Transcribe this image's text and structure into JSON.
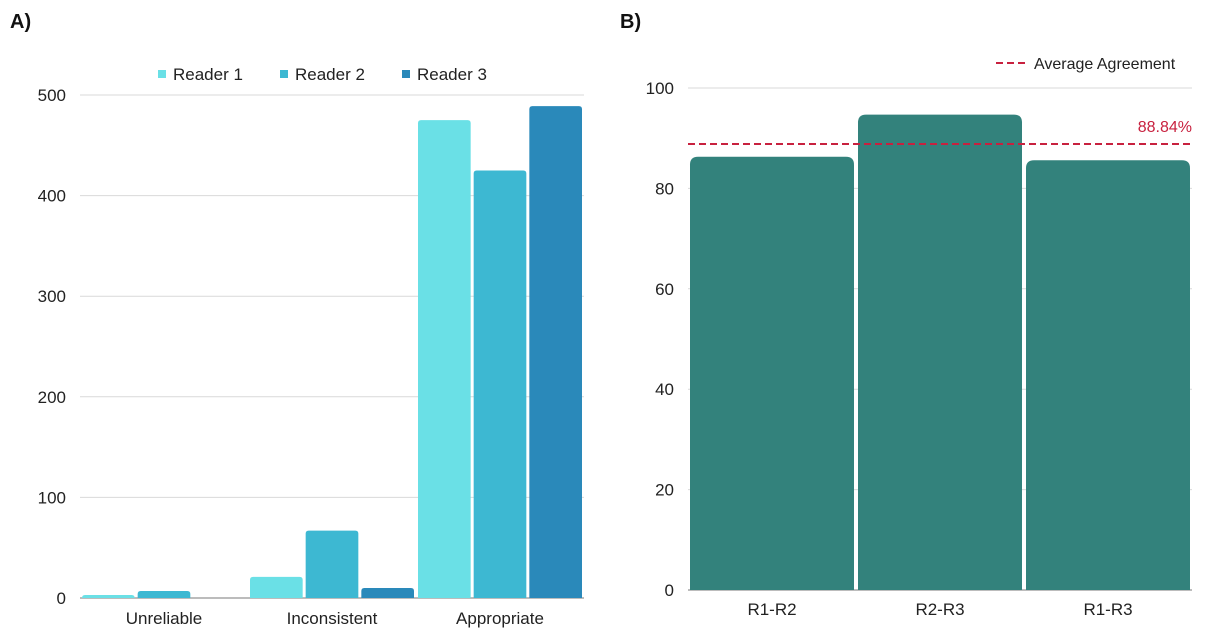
{
  "panels": {
    "a": {
      "label": "A)"
    },
    "b": {
      "label": "B)"
    }
  },
  "chart_data": [
    {
      "type": "bar",
      "title": "",
      "xlabel": "",
      "ylabel": "",
      "categories": [
        "Unreliable",
        "Inconsistent",
        "Appropriate"
      ],
      "series": [
        {
          "name": "Reader 1",
          "color": "#6AE0E6",
          "values": [
            3,
            21,
            475
          ]
        },
        {
          "name": "Reader 2",
          "color": "#3DB8D2",
          "values": [
            7,
            67,
            425
          ]
        },
        {
          "name": "Reader 3",
          "color": "#2A89BA",
          "values": [
            0,
            10,
            489
          ]
        }
      ],
      "ylim": [
        0,
        500
      ],
      "yticks": [
        0,
        100,
        200,
        300,
        400,
        500
      ],
      "grid": true,
      "legend": "top"
    },
    {
      "type": "bar",
      "title": "",
      "xlabel": "",
      "ylabel": "",
      "categories": [
        "R1-R2",
        "R2-R3",
        "R1-R3"
      ],
      "values": [
        86.3,
        94.7,
        85.6
      ],
      "bar_color": "#33827C",
      "ylim": [
        0,
        100
      ],
      "yticks": [
        0,
        20,
        40,
        60,
        80,
        100
      ],
      "grid": true,
      "reference_line": {
        "name": "Average Agreement",
        "value": 88.84,
        "label": "88.84%",
        "color": "#C8213F",
        "style": "dashed"
      },
      "legend": "top-right"
    }
  ]
}
